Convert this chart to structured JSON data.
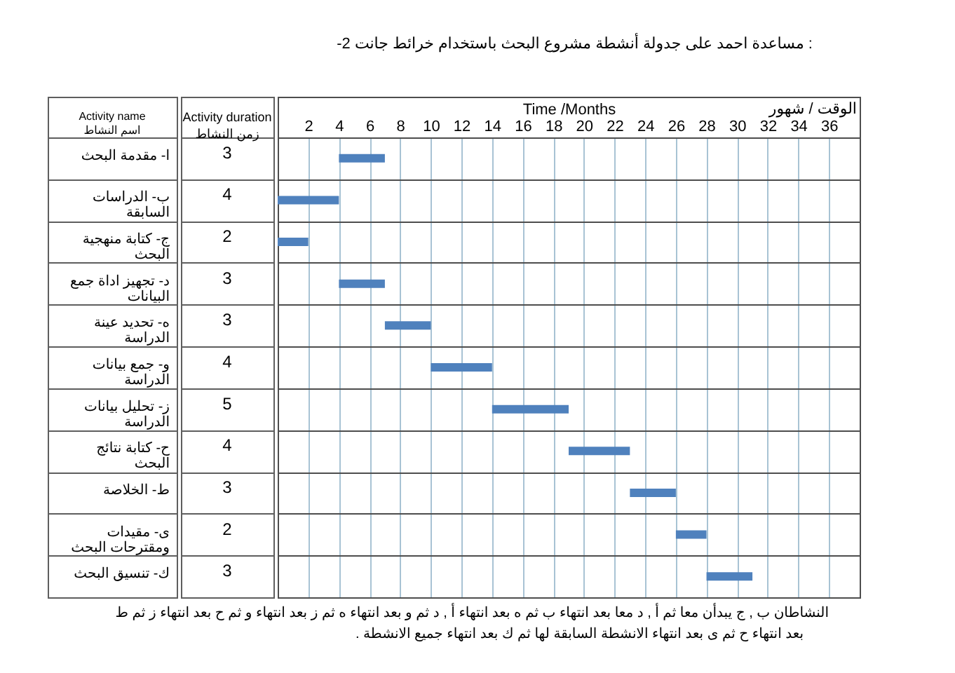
{
  "chart_data": {
    "type": "bar",
    "orientation": "horizontal",
    "title": "-2 مساعدة احمد على جدولة أنشطة مشروع البحث باستخدام خرائط جانت :",
    "xlabel": "Time /Months",
    "ylabel": "Activity name\nاسم النشاط",
    "categories": [
      "ا- مقدمة البحث",
      "ب- الدراسات السابقة",
      "ج- كتابة منهجية البحث",
      "د- تجهيز اداة جمع البيانات",
      "ه- تحديد عينة الدراسة",
      "و- جمع بيانات الدراسة",
      "ز- تحليل بيانات الدراسة",
      "ح- كتابة نتائج البحث",
      "ط- الخلاصة",
      "ى- مقيدات ومقترحات البحث",
      "ك- تنسيق البحث"
    ],
    "base": [
      4,
      0,
      0,
      4,
      7,
      10,
      14,
      19,
      23,
      26,
      28
    ],
    "values": [
      3,
      4,
      2,
      3,
      3,
      4,
      5,
      4,
      3,
      2,
      3
    ],
    "color": "#4f81bd",
    "xlim": [
      0,
      38
    ],
    "xticks": [
      2,
      4,
      6,
      8,
      10,
      12,
      14,
      16,
      18,
      20,
      22,
      24,
      26,
      28,
      30,
      32,
      34,
      36
    ],
    "grid": true,
    "data_labels": true,
    "annotations": [
      "Activity duration\nزمن النشاط",
      "الوقت / شهور",
      "النشاطان ب , ج يبدأن معا ثم أ , د معا بعد انتهاء ب ثم ه بعد انتهاء أ , د ثم و بعد انتهاء ه ثم ز بعد انتهاء و ثم ح بعد انتهاء ز ثم ط",
      ". بعد انتهاء ح ثم ى بعد انتهاء الانشطة السابقة لها ثم ك بعد انتهاء جميع الانشطة"
    ]
  }
}
